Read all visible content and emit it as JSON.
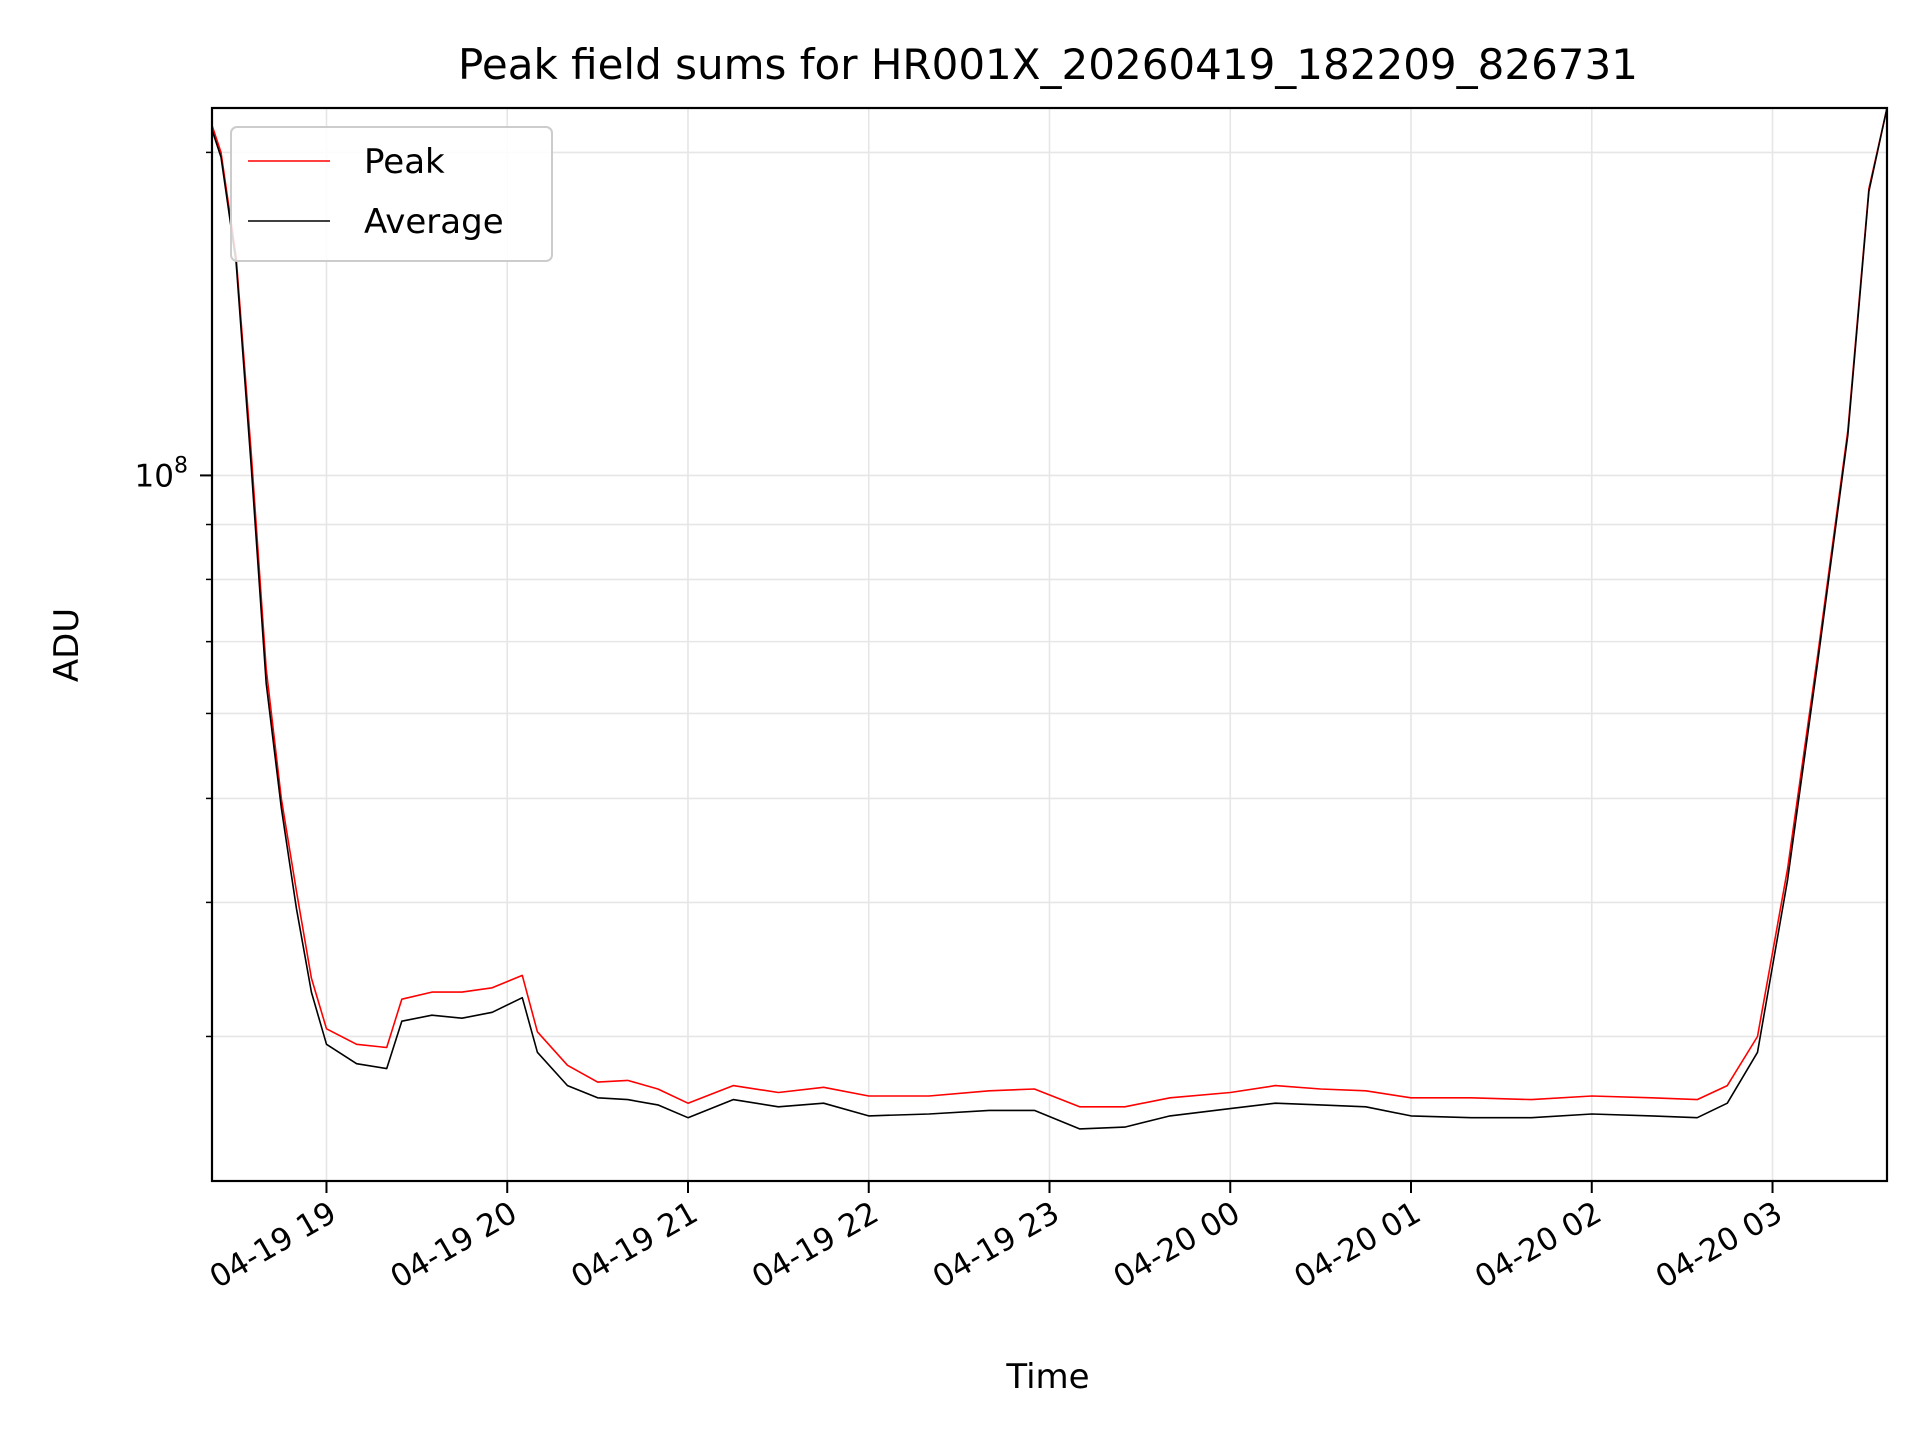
{
  "chart_data": {
    "type": "line",
    "title": "Peak field sums for HR001X_20260419_182209_826731",
    "xlabel": "Time",
    "ylabel": "ADU",
    "yscale": "log",
    "ylim": [
      22000000,
      220000000
    ],
    "xlim": [
      "2026-04-19 18:22",
      "2026-04-20 03:38"
    ],
    "grid": true,
    "legend_position": "upper left",
    "x_ticks": [
      {
        "value": "2026-04-19 19:00",
        "label": "04-19 19"
      },
      {
        "value": "2026-04-19 20:00",
        "label": "04-19 20"
      },
      {
        "value": "2026-04-19 21:00",
        "label": "04-19 21"
      },
      {
        "value": "2026-04-19 22:00",
        "label": "04-19 22"
      },
      {
        "value": "2026-04-19 23:00",
        "label": "04-19 23"
      },
      {
        "value": "2026-04-20 00:00",
        "label": "04-20 00"
      },
      {
        "value": "2026-04-20 01:00",
        "label": "04-20 01"
      },
      {
        "value": "2026-04-20 02:00",
        "label": "04-20 02"
      },
      {
        "value": "2026-04-20 03:00",
        "label": "04-20 03"
      }
    ],
    "y_ticks": [
      {
        "value": 100000000,
        "base": "10",
        "exp": "8"
      }
    ],
    "series": [
      {
        "name": "Peak",
        "color": "#ff0000",
        "x": [
          "2026-04-19 18:22",
          "2026-04-19 18:25",
          "2026-04-19 18:30",
          "2026-04-19 18:35",
          "2026-04-19 18:40",
          "2026-04-19 18:45",
          "2026-04-19 18:50",
          "2026-04-19 18:55",
          "2026-04-19 19:00",
          "2026-04-19 19:10",
          "2026-04-19 19:20",
          "2026-04-19 19:25",
          "2026-04-19 19:35",
          "2026-04-19 19:45",
          "2026-04-19 19:55",
          "2026-04-19 20:05",
          "2026-04-19 20:10",
          "2026-04-19 20:20",
          "2026-04-19 20:30",
          "2026-04-19 20:40",
          "2026-04-19 20:50",
          "2026-04-19 21:00",
          "2026-04-19 21:15",
          "2026-04-19 21:30",
          "2026-04-19 21:45",
          "2026-04-19 22:00",
          "2026-04-19 22:20",
          "2026-04-19 22:40",
          "2026-04-19 22:55",
          "2026-04-19 23:10",
          "2026-04-19 23:25",
          "2026-04-19 23:40",
          "2026-04-20 00:00",
          "2026-04-20 00:15",
          "2026-04-20 00:30",
          "2026-04-20 00:45",
          "2026-04-20 01:00",
          "2026-04-20 01:20",
          "2026-04-20 01:40",
          "2026-04-20 02:00",
          "2026-04-20 02:20",
          "2026-04-20 02:35",
          "2026-04-20 02:45",
          "2026-04-20 02:55",
          "2026-04-20 03:05",
          "2026-04-20 03:15",
          "2026-04-20 03:25",
          "2026-04-20 03:32",
          "2026-04-20 03:38"
        ],
        "values": [
          212000000,
          200000000,
          160000000,
          105000000,
          66000000,
          50000000,
          41000000,
          34000000,
          30500000,
          29500000,
          29300000,
          32500000,
          33000000,
          33000000,
          33300000,
          34200000,
          30300000,
          28200000,
          27200000,
          27300000,
          26800000,
          26000000,
          27000000,
          26600000,
          26900000,
          26400000,
          26400000,
          26700000,
          26800000,
          25800000,
          25800000,
          26300000,
          26600000,
          27000000,
          26800000,
          26700000,
          26300000,
          26300000,
          26200000,
          26400000,
          26300000,
          26200000,
          27000000,
          30000000,
          43000000,
          68000000,
          110000000,
          185000000,
          220000000
        ]
      },
      {
        "name": "Average",
        "color": "#000000",
        "x": [
          "2026-04-19 18:22",
          "2026-04-19 18:25",
          "2026-04-19 18:30",
          "2026-04-19 18:35",
          "2026-04-19 18:40",
          "2026-04-19 18:45",
          "2026-04-19 18:50",
          "2026-04-19 18:55",
          "2026-04-19 19:00",
          "2026-04-19 19:10",
          "2026-04-19 19:20",
          "2026-04-19 19:25",
          "2026-04-19 19:35",
          "2026-04-19 19:45",
          "2026-04-19 19:55",
          "2026-04-19 20:05",
          "2026-04-19 20:10",
          "2026-04-19 20:20",
          "2026-04-19 20:30",
          "2026-04-19 20:40",
          "2026-04-19 20:50",
          "2026-04-19 21:00",
          "2026-04-19 21:15",
          "2026-04-19 21:30",
          "2026-04-19 21:45",
          "2026-04-19 22:00",
          "2026-04-19 22:20",
          "2026-04-19 22:40",
          "2026-04-19 22:55",
          "2026-04-19 23:10",
          "2026-04-19 23:25",
          "2026-04-19 23:40",
          "2026-04-20 00:00",
          "2026-04-20 00:15",
          "2026-04-20 00:30",
          "2026-04-20 00:45",
          "2026-04-20 01:00",
          "2026-04-20 01:20",
          "2026-04-20 01:40",
          "2026-04-20 02:00",
          "2026-04-20 02:20",
          "2026-04-20 02:35",
          "2026-04-20 02:45",
          "2026-04-20 02:55",
          "2026-04-20 03:05",
          "2026-04-20 03:15",
          "2026-04-20 03:25",
          "2026-04-20 03:32",
          "2026-04-20 03:38"
        ],
        "values": [
          210000000,
          198000000,
          158000000,
          102000000,
          64000000,
          49000000,
          39500000,
          33000000,
          29500000,
          28300000,
          28000000,
          31000000,
          31400000,
          31200000,
          31600000,
          32600000,
          29000000,
          27000000,
          26300000,
          26200000,
          25900000,
          25200000,
          26200000,
          25800000,
          26000000,
          25300000,
          25400000,
          25600000,
          25600000,
          24600000,
          24700000,
          25300000,
          25700000,
          26000000,
          25900000,
          25800000,
          25300000,
          25200000,
          25200000,
          25400000,
          25300000,
          25200000,
          26000000,
          29000000,
          42000000,
          67000000,
          109000000,
          184000000,
          220000000
        ]
      }
    ]
  }
}
